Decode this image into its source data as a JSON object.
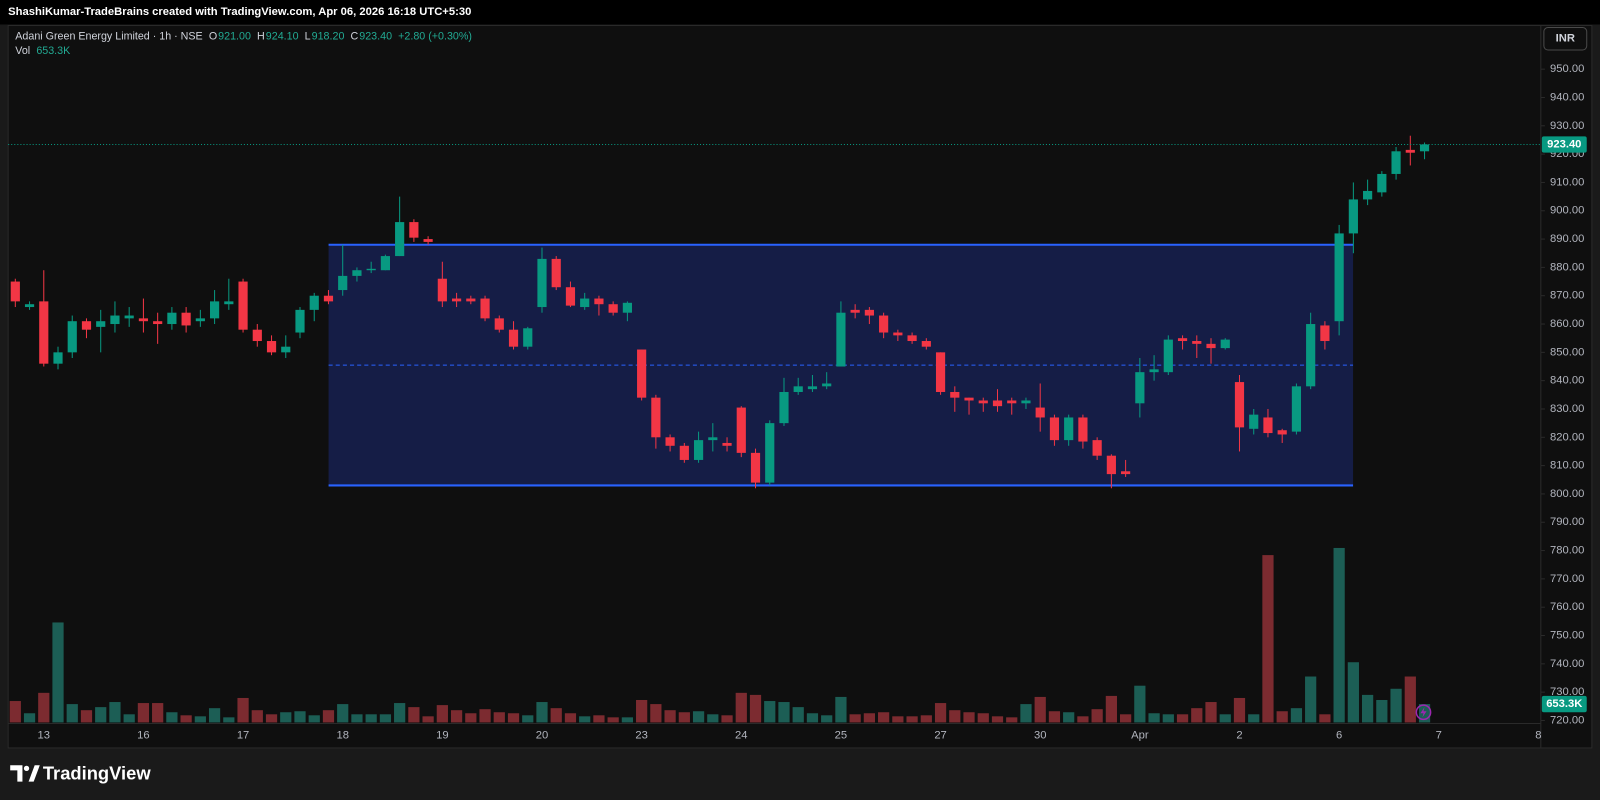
{
  "header": "ShashiKumar-TradeBrains created with TradingView.com, Apr 06, 2026 16:18 UTC+5:30",
  "brand": "TradingView",
  "chart_data": {
    "type": "candlestick",
    "legend": {
      "symbol": "Adani Green Energy Limited · 1h · NSE",
      "open_label": "O",
      "open": "921.00",
      "high_label": "H",
      "high": "924.10",
      "low_label": "L",
      "low": "918.20",
      "close_label": "C",
      "close": "923.40",
      "change": "+2.80 (+0.30%)",
      "volume_label": "Vol",
      "volume": "653.3K"
    },
    "currency": "INR",
    "categories": [
      null,
      null,
      "13",
      null,
      null,
      null,
      null,
      null,
      null,
      "16",
      null,
      null,
      null,
      null,
      null,
      null,
      "17",
      null,
      null,
      null,
      null,
      null,
      null,
      "18",
      null,
      null,
      null,
      null,
      null,
      null,
      "19",
      null,
      null,
      null,
      null,
      null,
      null,
      "20",
      null,
      null,
      null,
      null,
      null,
      null,
      "23",
      null,
      null,
      null,
      null,
      null,
      null,
      "24",
      null,
      null,
      null,
      null,
      null,
      null,
      "25",
      null,
      null,
      null,
      null,
      null,
      null,
      "27",
      null,
      null,
      null,
      null,
      null,
      null,
      "30",
      null,
      null,
      null,
      null,
      null,
      null,
      "Apr",
      null,
      null,
      null,
      null,
      null,
      null,
      "2",
      null,
      null,
      null,
      null,
      null,
      null,
      "6",
      null,
      null,
      null,
      null,
      null,
      null,
      "7",
      null,
      null,
      null,
      null,
      null,
      null,
      "8"
    ],
    "open": [
      875,
      866,
      868,
      846,
      850,
      861,
      859,
      860,
      862,
      862,
      861,
      860,
      864,
      861,
      862,
      867,
      875,
      858,
      854,
      850,
      857,
      865,
      870,
      872,
      877,
      879,
      879,
      884,
      896,
      890,
      876,
      869,
      869,
      869,
      862,
      858,
      852,
      866,
      883,
      873,
      866,
      869,
      867,
      864,
      851,
      834,
      820,
      817,
      812,
      819,
      818,
      830.5,
      814.5,
      804,
      825,
      836,
      837,
      838,
      845,
      865,
      865,
      863,
      857,
      856,
      854,
      850,
      836,
      834,
      833,
      833,
      833,
      832,
      830.5,
      827,
      819,
      827,
      819,
      813.5,
      808,
      832,
      843,
      843,
      855,
      854,
      853,
      851.5,
      839.5,
      823,
      827,
      822.5,
      822,
      838,
      859.5,
      861,
      892,
      904,
      906.5,
      913,
      921.5,
      921,
      null,
      null,
      null,
      null,
      null,
      null,
      null,
      null
    ],
    "high": [
      876,
      868,
      879,
      852,
      863,
      862,
      865,
      868,
      866,
      869,
      864,
      866,
      866,
      865,
      872,
      876,
      876,
      860,
      856,
      856,
      866,
      871,
      872,
      888,
      880,
      882,
      884.5,
      905,
      897,
      891,
      882,
      871,
      870,
      870,
      863,
      861,
      859,
      887,
      884,
      875,
      871,
      870,
      868,
      868,
      851,
      835,
      821,
      818,
      822,
      825,
      820,
      831,
      816,
      826,
      841,
      841,
      842,
      843,
      868,
      867,
      866,
      864,
      858,
      857,
      855,
      850,
      838,
      834,
      834,
      837,
      834,
      834,
      839,
      828,
      828,
      828,
      820,
      814,
      812,
      848,
      849,
      856,
      856,
      856,
      855,
      855,
      842,
      830,
      830,
      823,
      839,
      864,
      861,
      895,
      910,
      911,
      914,
      922.5,
      926.5,
      924.1,
      null,
      null,
      null,
      null,
      null,
      null,
      null,
      null
    ],
    "low": [
      866,
      865,
      845,
      844,
      848,
      855,
      850,
      857,
      859,
      857,
      853,
      858,
      857,
      859,
      860,
      865,
      857,
      852,
      849,
      848,
      855,
      861,
      867,
      870,
      875,
      878,
      879,
      884,
      889,
      888,
      866,
      866,
      867,
      861,
      857,
      851,
      851,
      864,
      872,
      866,
      865,
      863,
      863,
      861,
      833,
      816,
      815,
      811,
      811,
      815,
      815,
      813,
      802,
      803,
      824,
      835,
      836,
      837,
      845,
      862,
      860,
      855,
      854,
      853,
      851,
      835,
      829,
      828,
      829,
      829,
      828,
      830,
      822,
      817,
      817,
      816,
      812,
      802,
      806,
      827,
      840,
      842,
      851,
      848,
      846,
      851,
      815,
      821,
      820,
      818,
      821,
      837,
      851,
      856,
      885,
      902,
      905,
      911,
      916,
      918.2,
      null,
      null,
      null,
      null,
      null,
      null,
      null,
      null
    ],
    "close": [
      868,
      867,
      846,
      850,
      861,
      858,
      861,
      863,
      863,
      861,
      860,
      864,
      859.5,
      862,
      868,
      868,
      858,
      854,
      850,
      852,
      865,
      870,
      868,
      877,
      879,
      879.5,
      884,
      896,
      890.5,
      889,
      868,
      868,
      868,
      862,
      858,
      852,
      858.5,
      883,
      873,
      866.5,
      869,
      867,
      864,
      867.5,
      834,
      820,
      817,
      812,
      819,
      820,
      817,
      814.5,
      804,
      825,
      836,
      838,
      838,
      839,
      864,
      864,
      863,
      857,
      856,
      854,
      852,
      836,
      834,
      833,
      832,
      831,
      832,
      833,
      827,
      819,
      827,
      818.5,
      813.5,
      807,
      807,
      843,
      844,
      854.5,
      854,
      853,
      851.5,
      854.5,
      823.5,
      828,
      821.5,
      821,
      838,
      860,
      854,
      892,
      904,
      907,
      913,
      921,
      920.5,
      923.4,
      null,
      null,
      null,
      null,
      null,
      null,
      null,
      null
    ],
    "volume": [
      762,
      327,
      1053,
      3557,
      653,
      436,
      545,
      726,
      290,
      690,
      690,
      363,
      254,
      218,
      508,
      182,
      871,
      436,
      290,
      363,
      399,
      254,
      436,
      653,
      290,
      290,
      290,
      690,
      545,
      218,
      617,
      436,
      327,
      472,
      363,
      327,
      254,
      726,
      508,
      327,
      218,
      254,
      182,
      182,
      799,
      653,
      436,
      363,
      399,
      290,
      254,
      1053,
      980,
      762,
      726,
      545,
      327,
      254,
      908,
      290,
      327,
      363,
      218,
      218,
      254,
      690,
      436,
      363,
      327,
      218,
      182,
      653,
      908,
      399,
      363,
      218,
      472,
      944,
      290,
      1307,
      327,
      290,
      290,
      508,
      726,
      290,
      871,
      290,
      5953,
      399,
      508,
      1634,
      290,
      6207,
      2142,
      980,
      799,
      1198,
      1634,
      653.3,
      null,
      null,
      null,
      null,
      null,
      null,
      null,
      null
    ],
    "ylim": [
      719.3,
      964.7
    ],
    "yticks": [
      {
        "value": 720,
        "label": "720.00"
      },
      {
        "value": 730,
        "label": "730.00"
      },
      {
        "value": 740,
        "label": "740.00"
      },
      {
        "value": 750,
        "label": "750.00"
      },
      {
        "value": 760,
        "label": "760.00"
      },
      {
        "value": 770,
        "label": "770.00"
      },
      {
        "value": 780,
        "label": "780.00"
      },
      {
        "value": 790,
        "label": "790.00"
      },
      {
        "value": 800,
        "label": "800.00"
      },
      {
        "value": 810,
        "label": "810.00"
      },
      {
        "value": 820,
        "label": "820.00"
      },
      {
        "value": 830,
        "label": "830.00"
      },
      {
        "value": 840,
        "label": "840.00"
      },
      {
        "value": 850,
        "label": "850.00"
      },
      {
        "value": 860,
        "label": "860.00"
      },
      {
        "value": 870,
        "label": "870.00"
      },
      {
        "value": 880,
        "label": "880.00"
      },
      {
        "value": 890,
        "label": "890.00"
      },
      {
        "value": 900,
        "label": "900.00"
      },
      {
        "value": 910,
        "label": "910.00"
      },
      {
        "value": 920,
        "label": "920.00"
      },
      {
        "value": 930,
        "label": "930.00"
      },
      {
        "value": 940,
        "label": "940.00"
      },
      {
        "value": 950,
        "label": "950.00"
      }
    ],
    "y2lim": [
      0,
      8276
    ],
    "range_box": {
      "top": 888,
      "bottom": 803,
      "fill": "#162050",
      "line_color": "#2962ff"
    },
    "up_color": "#089981",
    "down_color": "#f23645",
    "volume_up_color": "#1c5e55",
    "volume_down_color": "#7c2b30",
    "grid": false
  }
}
